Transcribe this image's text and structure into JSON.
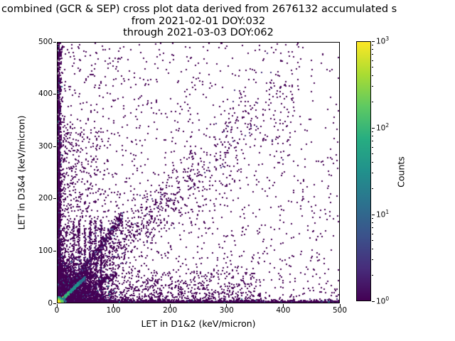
{
  "figure": {
    "title_lines": [
      "combined (GCR & SEP) cross plot data derived from 2676132 accumulated s",
      "from 2021-02-01 DOY:032",
      "through 2021-03-03 DOY:062"
    ],
    "background": "#ffffff"
  },
  "axes": {
    "xlabel": "LET in D1&2 (keV/micron)",
    "ylabel": "LET in D3&4 (keV/micron)",
    "xticks": [
      0,
      100,
      200,
      300,
      400,
      500
    ],
    "yticks": [
      0,
      100,
      200,
      300,
      400,
      500
    ],
    "xlim": [
      0,
      500
    ],
    "ylim": [
      0,
      500
    ]
  },
  "colorbar": {
    "label": "Counts",
    "scale": "log",
    "min_exp": 0,
    "max_exp": 3,
    "ticks": [
      {
        "base": "10",
        "exp": "0",
        "value": 1
      },
      {
        "base": "10",
        "exp": "1",
        "value": 10
      },
      {
        "base": "10",
        "exp": "2",
        "value": 100
      },
      {
        "base": "10",
        "exp": "3",
        "value": 1000
      }
    ],
    "cmap": "viridis",
    "gradient_bottom_to_top": [
      "#440154",
      "#472d7b",
      "#3b528b",
      "#2c728e",
      "#21918c",
      "#27ad81",
      "#5ec962",
      "#aadc32",
      "#fde725"
    ]
  },
  "chart_data": {
    "type": "2d_histogram_scatter_density",
    "title": "combined (GCR & SEP) cross plot data derived from 2676132 accumulated s",
    "subtitle_from": "from 2021-02-01 DOY:032",
    "subtitle_through": "through 2021-03-03 DOY:062",
    "accumulated_events": 2676132,
    "from_date": "2021-02-01",
    "from_doy": "032",
    "through_date": "2021-03-03",
    "through_doy": "062",
    "xlabel": "LET in D1&2 (keV/micron)",
    "ylabel": "LET in D3&4 (keV/micron)",
    "xlim": [
      0,
      500
    ],
    "ylim": [
      0,
      500
    ],
    "counts_norm": "log",
    "counts_range": [
      1,
      1000
    ],
    "legend_position": "right-colorbar",
    "grid": false,
    "seed": 42,
    "density_features": [
      {
        "name": "origin-dense-blob",
        "type": "blob",
        "n": 5200,
        "mx": 20,
        "my": 18,
        "clip": 130,
        "colors": [
          [
            "#440154",
            0.78
          ],
          [
            "#46327e",
            0.12
          ],
          [
            "#3b528b",
            0.06
          ],
          [
            "#21918c",
            0.04
          ]
        ],
        "size": 2
      },
      {
        "name": "left-edge-band",
        "type": "vband",
        "n": 2200,
        "x0": 0,
        "w": 1.6,
        "ymax": 500,
        "pow": 2.3,
        "colors": [
          [
            "#440154",
            0.84
          ],
          [
            "#46327e",
            0.1
          ],
          [
            "#2c728e",
            0.06
          ]
        ],
        "size": 2
      },
      {
        "name": "bottom-edge-band",
        "type": "hband",
        "n": 2600,
        "y0": 0,
        "w": 1.4,
        "xmax": 500,
        "pow": 1.6,
        "colors": [
          [
            "#440154",
            0.84
          ],
          [
            "#46327e",
            0.1
          ],
          [
            "#2c728e",
            0.06
          ]
        ],
        "size": 2
      },
      {
        "name": "vertical-columns",
        "type": "cols",
        "n": 820,
        "xs": [
          27,
          37,
          47,
          57,
          66,
          76
        ],
        "w": 2.6,
        "ymax": 158,
        "pow": 1.6,
        "colors": [
          [
            "#440154",
            0.8
          ],
          [
            "#46327e",
            0.2
          ]
        ],
        "size": 2
      },
      {
        "name": "diagonal-correlation-band",
        "type": "diag",
        "n": 1150,
        "x0": 15,
        "x1": 420,
        "tpow": 2.0,
        "slope": 1.0,
        "rs": 0.16,
        "as": 5,
        "colors": [
          [
            "#440154",
            0.92
          ],
          [
            "#46327e",
            0.08
          ]
        ],
        "size": 2
      },
      {
        "name": "steep-streak",
        "type": "diag",
        "n": 620,
        "x0": 0,
        "x1": 115,
        "tpow": 1.3,
        "slope": 1.45,
        "rs": 0.05,
        "as": 2.5,
        "colors": [
          [
            "#440154",
            0.75
          ],
          [
            "#46327e",
            0.15
          ],
          [
            "#3b528b",
            0.1
          ]
        ],
        "size": 2
      },
      {
        "name": "shallow-streak",
        "type": "diag",
        "n": 300,
        "x0": 0,
        "x1": 105,
        "tpow": 1.2,
        "slope": 0.52,
        "rs": 0.06,
        "as": 2.2,
        "colors": [
          [
            "#440154",
            0.85
          ],
          [
            "#46327e",
            0.15
          ]
        ],
        "size": 2
      },
      {
        "name": "left-fan",
        "type": "sparse",
        "n": 700,
        "xmax": 85,
        "bx": 2.0,
        "ymax": 330,
        "by": 1.4,
        "colors": [
          [
            "#440154",
            1
          ]
        ],
        "size": 2
      },
      {
        "name": "bottom-fan",
        "type": "sparse",
        "n": 900,
        "xmax": 360,
        "bx": 1.3,
        "ymax": 64,
        "by": 2.0,
        "colors": [
          [
            "#440154",
            1
          ]
        ],
        "size": 2
      },
      {
        "name": "sparse-lower-left",
        "type": "sparse",
        "n": 1500,
        "xmax": 500,
        "bx": 1.9,
        "ymax": 500,
        "by": 1.9,
        "colors": [
          [
            "#440154",
            1
          ]
        ],
        "size": 2
      },
      {
        "name": "sparse-field",
        "type": "sparse",
        "n": 470,
        "xmax": 500,
        "bx": 1.25,
        "ymax": 500,
        "by": 1.25,
        "colors": [
          [
            "#440154",
            1
          ]
        ],
        "size": 2
      },
      {
        "name": "identity-teal-streak",
        "type": "streak",
        "n": 600,
        "xmax": 48,
        "slope": 1.0,
        "sigma": 1.3,
        "tpow": 1.2,
        "ramp": [
          "#aadc32",
          "#35b779",
          "#21918c",
          "#21918c",
          "#2c728e"
        ],
        "size": 2
      },
      {
        "name": "origin-hotspot",
        "type": "core",
        "n": 380,
        "mean": 4,
        "rmax": 14,
        "ramp": [
          "#fde725",
          "#d8e219",
          "#5ec962",
          "#21918c",
          "#2c728e"
        ],
        "size": 2
      }
    ]
  }
}
